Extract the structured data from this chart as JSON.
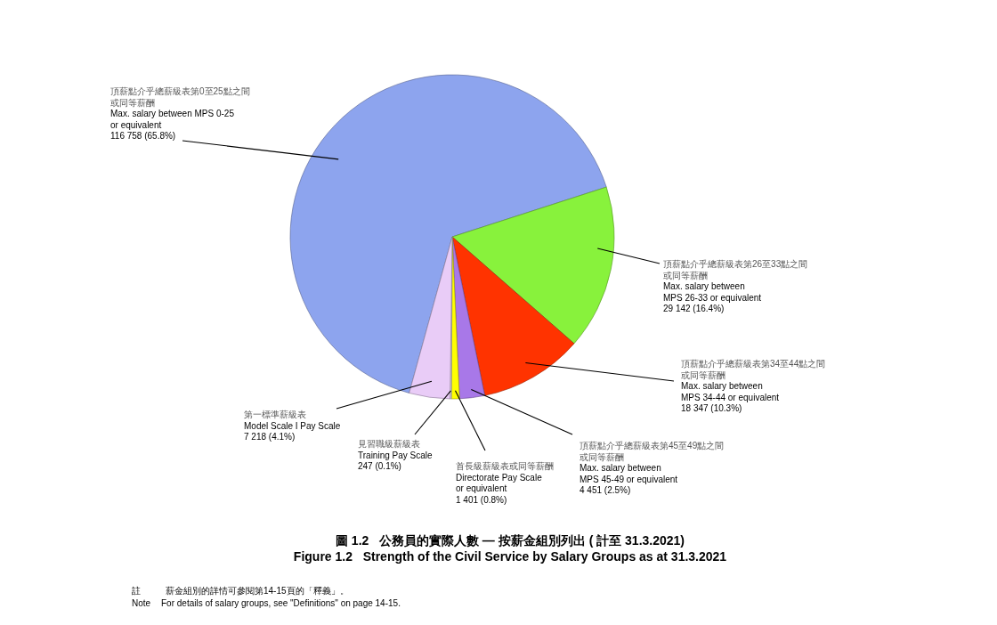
{
  "chart_data": {
    "type": "pie",
    "title": "圖 1.2   公務員的實際人數 — 按薪金組別列出 ( 計至 31.3.2021)",
    "subtitle": "Figure 1.2   Strength of the Civil Service by Salary Groups as at 31.3.2021",
    "categories": [
      "頂薪點介乎總薪級表第0至25點之間或同等薪酬\nMax. salary between MPS 0-25\nor equivalent",
      "頂薪點介乎總薪級表第26至33點之間或同等薪酬\nMax. salary between\nMPS 26-33 or equivalent",
      "頂薪點介乎總薪級表第34至44點之間或同等薪酬\nMax. salary between\nMPS 34-44 or equivalent",
      "頂薪點介乎總薪級表第45至49點之間或同等薪酬\nMax. salary between\nMPS 45-49 or equivalent",
      "首長級薪級表或同等薪酬\nDirectorate Pay Scale\nor equivalent",
      "見習職級薪級表\nTraining Pay Scale",
      "第一標準薪級表\nModel Scale I Pay Scale"
    ],
    "values": [
      116758,
      29142,
      18347,
      4451,
      1401,
      247,
      7218
    ],
    "value_labels": [
      "116 758 (65.8%)",
      "29 142 (16.4%)",
      "18 347 (10.3%)",
      "4 451 (2.5%)",
      "1 401 (0.8%)",
      "247 (0.1%)",
      "7 218 (4.1%)"
    ],
    "colors": [
      "#8da4ee",
      "#88f23c",
      "#ff3300",
      "#a878e8",
      "#ffff00",
      "#d8d8d8",
      "#e9ccf7"
    ],
    "annotations": [
      "註",
      "薪金組別的詳情可參閱第14-15頁的「釋義」。",
      "Note",
      "For details of salary groups, see \"Definitions\" on page 14-15."
    ]
  }
}
